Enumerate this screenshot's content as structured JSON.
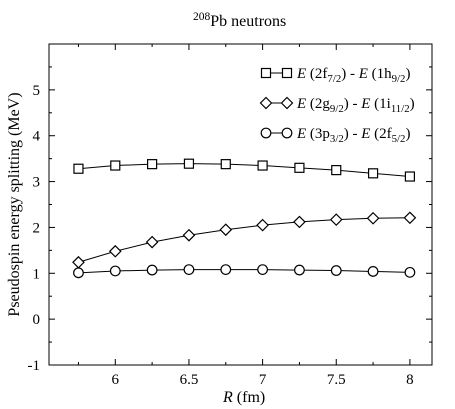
{
  "chart_data": {
    "type": "line",
    "title": {
      "sup": "208",
      "main": "Pb neutrons"
    },
    "xlabel": {
      "italic": "R",
      "rest": " (fm)"
    },
    "ylabel": "Pseudospin energy splitting (MeV)",
    "xlim": [
      5.55,
      8.15
    ],
    "ylim": [
      -1,
      6
    ],
    "x_ticks": [
      6,
      6.5,
      7,
      7.5,
      8
    ],
    "x_tick_labels": [
      "6",
      "6.5",
      "7",
      "7.5",
      "8"
    ],
    "y_ticks": [
      -1,
      0,
      1,
      2,
      3,
      4,
      5
    ],
    "y_tick_labels": [
      "-1",
      "0",
      "1",
      "2",
      "3",
      "4",
      "5"
    ],
    "x": [
      5.75,
      6.0,
      6.25,
      6.5,
      6.75,
      7.0,
      7.25,
      7.5,
      7.75,
      8.0
    ],
    "series": [
      {
        "marker": "square",
        "values": [
          3.28,
          3.35,
          3.38,
          3.39,
          3.38,
          3.35,
          3.3,
          3.25,
          3.18,
          3.11
        ],
        "legend": [
          {
            "t": "E",
            "s": "italic"
          },
          {
            "t": " (2f",
            "s": ""
          },
          {
            "t": "7/2",
            "s": "sub"
          },
          {
            "t": ") - ",
            "s": ""
          },
          {
            "t": "E",
            "s": "italic"
          },
          {
            "t": " (1h",
            "s": ""
          },
          {
            "t": "9/2",
            "s": "sub"
          },
          {
            "t": ")",
            "s": ""
          }
        ]
      },
      {
        "marker": "diamond",
        "values": [
          1.24,
          1.48,
          1.68,
          1.83,
          1.95,
          2.05,
          2.12,
          2.17,
          2.2,
          2.21
        ],
        "legend": [
          {
            "t": "E",
            "s": "italic"
          },
          {
            "t": " (2g",
            "s": ""
          },
          {
            "t": "9/2",
            "s": "sub"
          },
          {
            "t": ") - ",
            "s": ""
          },
          {
            "t": "E",
            "s": "italic"
          },
          {
            "t": " (1i",
            "s": ""
          },
          {
            "t": "11/2",
            "s": "sub"
          },
          {
            "t": ")",
            "s": ""
          }
        ]
      },
      {
        "marker": "circle",
        "values": [
          1.01,
          1.05,
          1.07,
          1.08,
          1.08,
          1.08,
          1.07,
          1.06,
          1.04,
          1.02
        ],
        "legend": [
          {
            "t": "E",
            "s": "italic"
          },
          {
            "t": " (3p",
            "s": ""
          },
          {
            "t": "3/2",
            "s": "sub"
          },
          {
            "t": ") - ",
            "s": ""
          },
          {
            "t": "E",
            "s": "italic"
          },
          {
            "t": " (2f",
            "s": ""
          },
          {
            "t": "5/2",
            "s": "sub"
          },
          {
            "t": ")",
            "s": ""
          }
        ]
      }
    ],
    "legend_position": "top-right",
    "grid": false
  }
}
